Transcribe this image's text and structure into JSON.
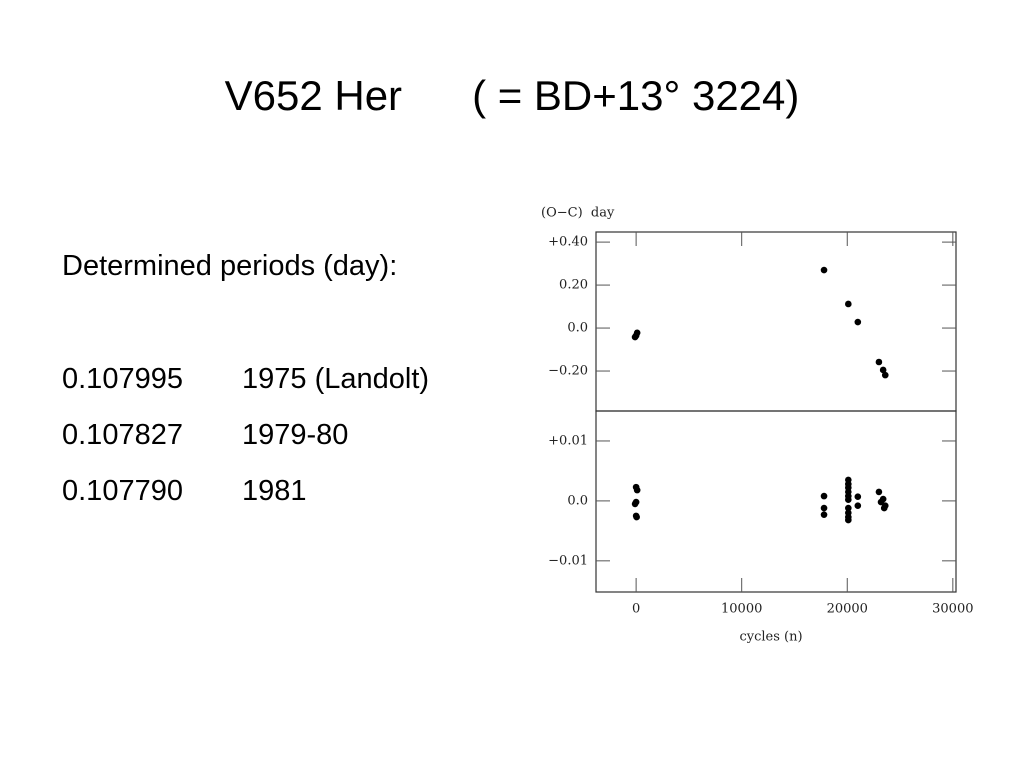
{
  "slide": {
    "title": "V652 Her",
    "title_alt": "( = BD+13° 3224)",
    "heading": "Determined periods (day):",
    "periods": [
      {
        "period": "0.107995",
        "year": "1975 (Landolt)"
      },
      {
        "period": "0.107827",
        "year": "1979-80"
      },
      {
        "period": "0.107790",
        "year": "1981"
      }
    ]
  },
  "chart_data": [
    {
      "type": "scatter",
      "ylabel": "(O−C)  day",
      "xlim": [
        -3800,
        30300
      ],
      "ylim": [
        -0.386,
        0.447
      ],
      "yticks": [
        {
          "value": 0.4,
          "label": "+0.40"
        },
        {
          "value": 0.2,
          "label": "0.20"
        },
        {
          "value": 0,
          "label": "0.0"
        },
        {
          "value": -0.2,
          "label": "−0.20"
        }
      ],
      "color": "#000000",
      "x": [
        -100,
        0,
        100,
        17800,
        20100,
        21000,
        23000,
        23400,
        23600
      ],
      "values": [
        -0.042,
        -0.035,
        -0.022,
        0.27,
        0.112,
        0.028,
        -0.158,
        -0.195,
        -0.219
      ]
    },
    {
      "type": "scatter",
      "xlabel": "cycles (n)",
      "xlim": [
        -3800,
        30300
      ],
      "ylim": [
        -0.0152,
        0.015
      ],
      "xticks": [
        0,
        10000,
        20000,
        30000
      ],
      "yticks": [
        {
          "value": 0.01,
          "label": "+0.01"
        },
        {
          "value": 0,
          "label": "0.0"
        },
        {
          "value": -0.01,
          "label": "−0.01"
        }
      ],
      "color": "#000000",
      "x": [
        0,
        100,
        0,
        -100,
        0,
        50,
        17800,
        17800,
        17800,
        20100,
        20100,
        20100,
        20100,
        20100,
        20100,
        20100,
        20100,
        20100,
        20100,
        21000,
        21000,
        23000,
        23400,
        23200,
        23600,
        23500
      ],
      "values": [
        0.0023,
        0.0018,
        -0.0002,
        -0.0005,
        -0.0025,
        -0.0027,
        0.0008,
        -0.0012,
        -0.0023,
        0.0035,
        0.0028,
        0.0022,
        0.0015,
        0.0008,
        0.0002,
        -0.0012,
        -0.002,
        -0.0027,
        -0.0032,
        0.0007,
        -0.0008,
        0.0015,
        0.0003,
        -0.0002,
        -0.0008,
        -0.0012
      ]
    }
  ]
}
